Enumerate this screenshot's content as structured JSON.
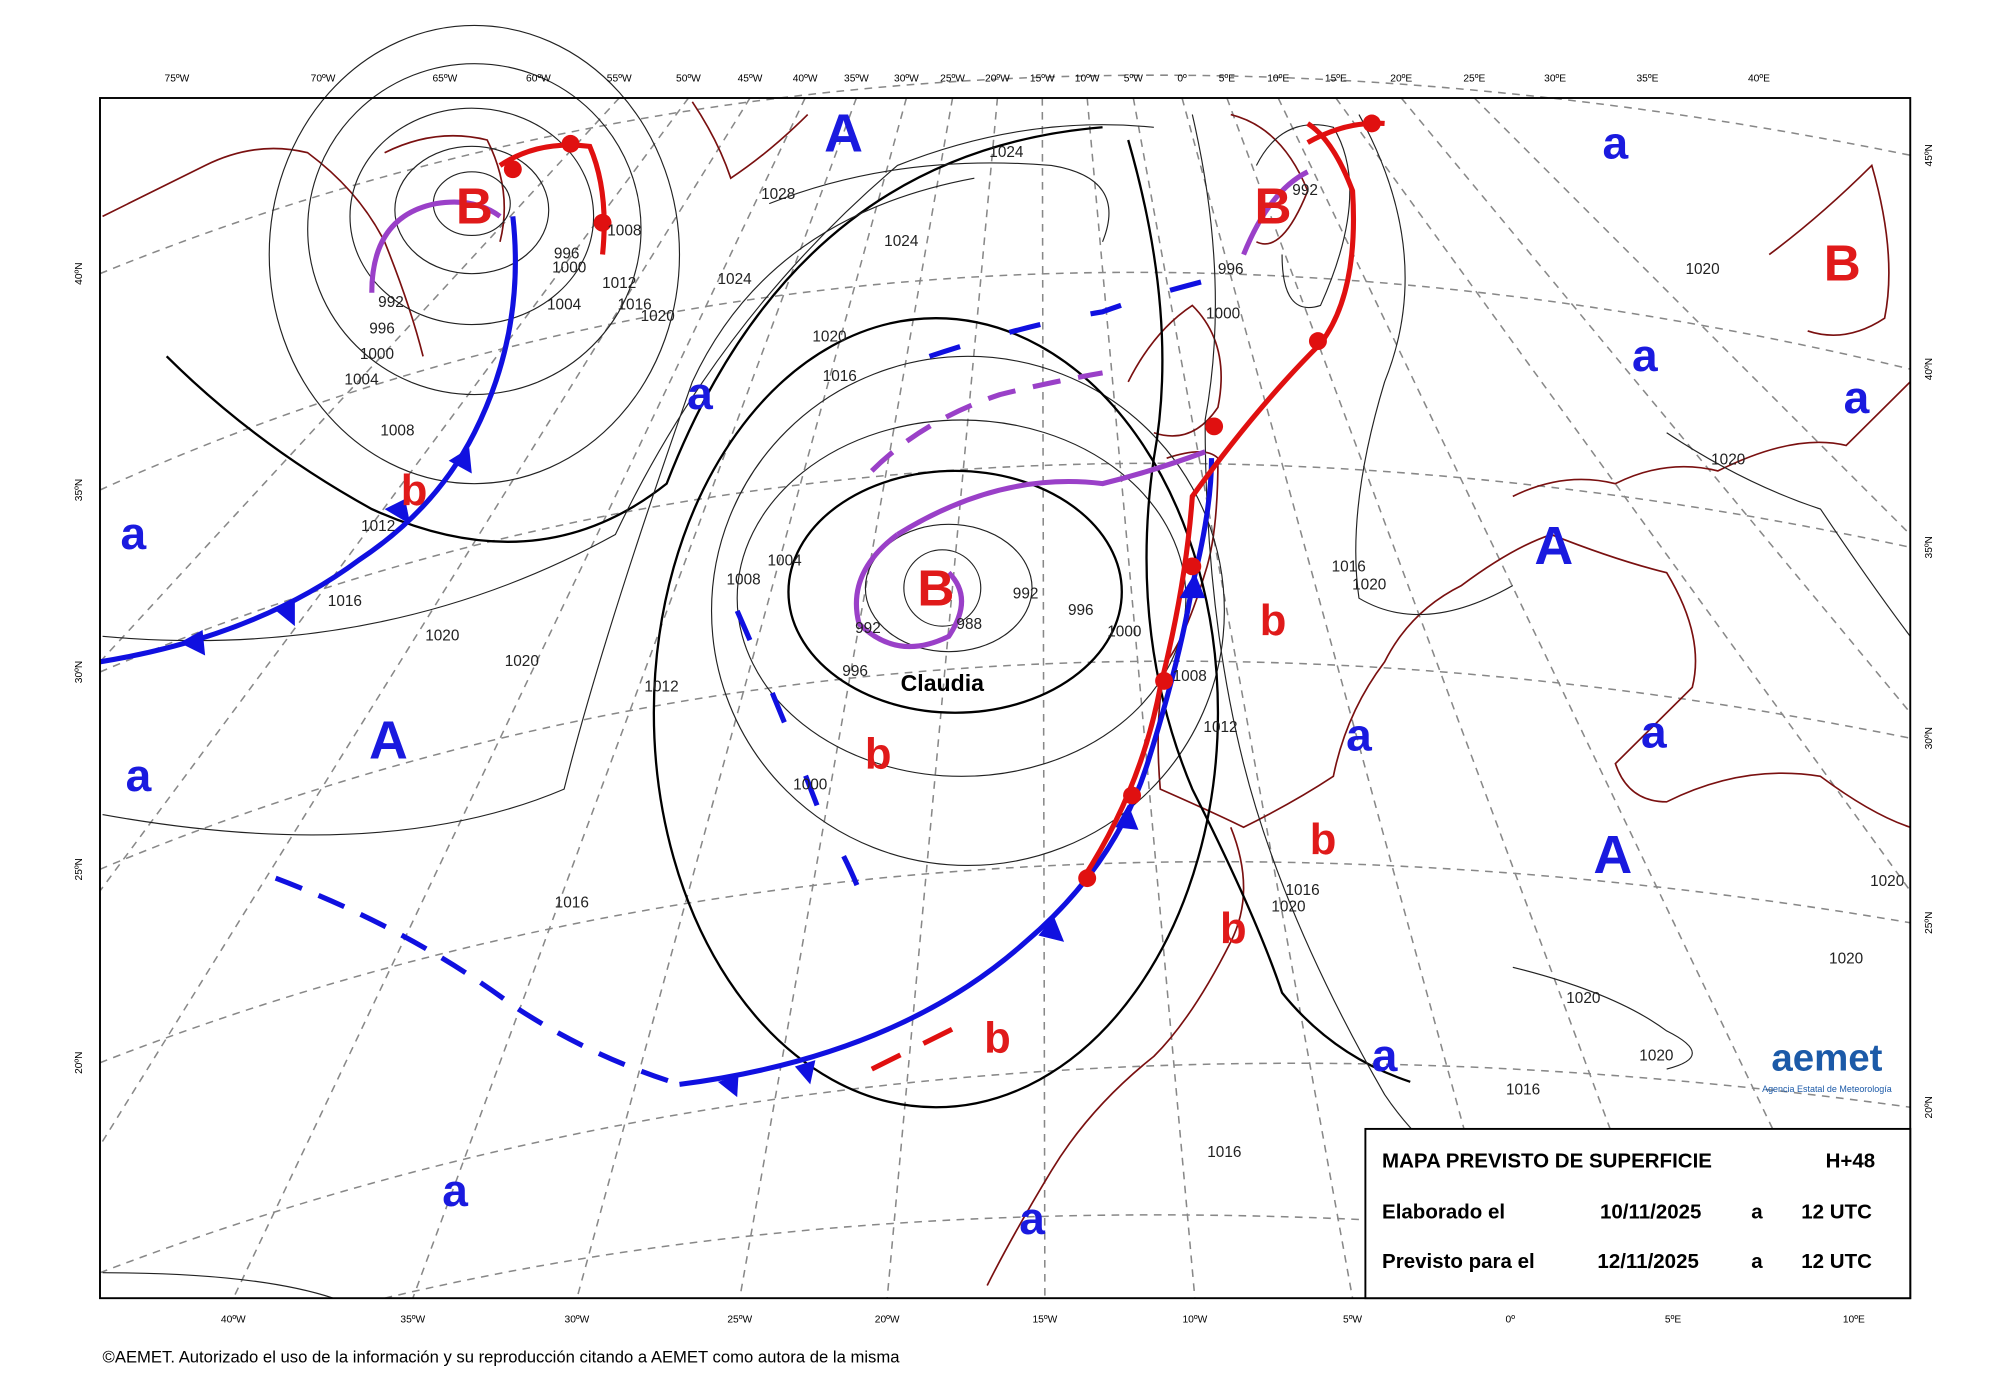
{
  "map": {
    "top_lon_labels": [
      "75ºW",
      "70ºW",
      "65ºW",
      "60ºW",
      "55ºW",
      "50ºW",
      "45ºW",
      "40ºW",
      "35ºW",
      "30ºW",
      "25ºW",
      "20ºW",
      "15ºW",
      "10ºW",
      "5ºW",
      "0º",
      "5ºE",
      "10ºE",
      "15ºE",
      "20ºE",
      "25ºE",
      "30ºE",
      "35ºE",
      "40ºE"
    ],
    "bottom_lon_labels": [
      "40ºW",
      "35ºW",
      "30ºW",
      "25ºW",
      "20ºW",
      "15ºW",
      "10ºW",
      "5ºW",
      "0º",
      "5ºE",
      "10ºE"
    ],
    "left_lat_labels": [
      "40ºN",
      "35ºN",
      "30ºN",
      "25ºN",
      "20ºN"
    ],
    "right_lat_labels": [
      "45ºN",
      "40ºN",
      "35ºN",
      "30ºN",
      "25ºN",
      "20ºN"
    ],
    "high_major": [
      "A",
      "A",
      "A",
      "A"
    ],
    "high_minor": [
      "a",
      "a",
      "a",
      "a",
      "a",
      "a",
      "a",
      "a",
      "a",
      "a",
      "a"
    ],
    "low_major": [
      "B",
      "B",
      "B",
      "B"
    ],
    "low_minor": [
      "b",
      "b",
      "b",
      "b",
      "b",
      "b"
    ],
    "isobar_labels": [
      "1028",
      "1024",
      "1024",
      "1024",
      "1020",
      "1020",
      "1020",
      "1020",
      "1020",
      "1020",
      "1020",
      "1020",
      "1020",
      "1020",
      "1020",
      "1020",
      "1016",
      "1016",
      "1016",
      "1016",
      "1016",
      "1016",
      "1016",
      "1016",
      "1012",
      "1012",
      "1012",
      "1012",
      "1008",
      "1008",
      "1008",
      "1008",
      "1004",
      "1004",
      "1004",
      "1000",
      "1000",
      "1000",
      "1000",
      "1000",
      "996",
      "996",
      "996",
      "996",
      "996",
      "992",
      "992",
      "992",
      "992",
      "988"
    ],
    "storm_name": "Claudia",
    "info_box": {
      "title": "MAPA PREVISTO DE SUPERFICIE",
      "range": "H+48",
      "made_label": "Elaborado el",
      "made_date": "10/11/2025",
      "made_at": "a",
      "made_time": "12 UTC",
      "valid_label": "Previsto para el",
      "valid_date": "12/11/2025",
      "valid_at": "a",
      "valid_time": "12 UTC"
    },
    "logo": {
      "name": "aemet",
      "agency": "Agencia Estatal de Meteorología"
    },
    "copyright": "©AEMET. Autorizado el uso de la información y su reproducción citando a AEMET como autora de la misma"
  }
}
